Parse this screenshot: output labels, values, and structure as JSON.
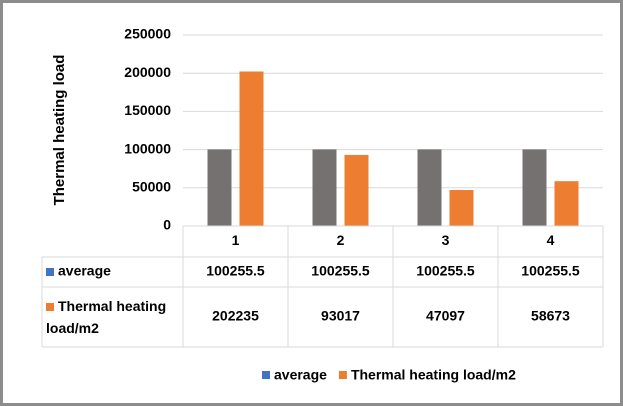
{
  "chart_data": {
    "type": "bar",
    "y_axis_label": "Thermal heating load",
    "categories": [
      "1",
      "2",
      "3",
      "4"
    ],
    "series": [
      {
        "name": "average",
        "color": "#767171",
        "legend_color": "#4472c4",
        "values": [
          100255.5,
          100255.5,
          100255.5,
          100255.5
        ]
      },
      {
        "name": "Thermal heating load/m2",
        "color": "#ed7d31",
        "legend_color": "#ed7d31",
        "values": [
          202235,
          93017,
          47097,
          58673
        ]
      }
    ],
    "ylim": [
      0,
      250000
    ],
    "yticks": [
      0,
      50000,
      100000,
      150000,
      200000,
      250000
    ],
    "grid": true,
    "data_table": true,
    "legend": "bottom"
  }
}
